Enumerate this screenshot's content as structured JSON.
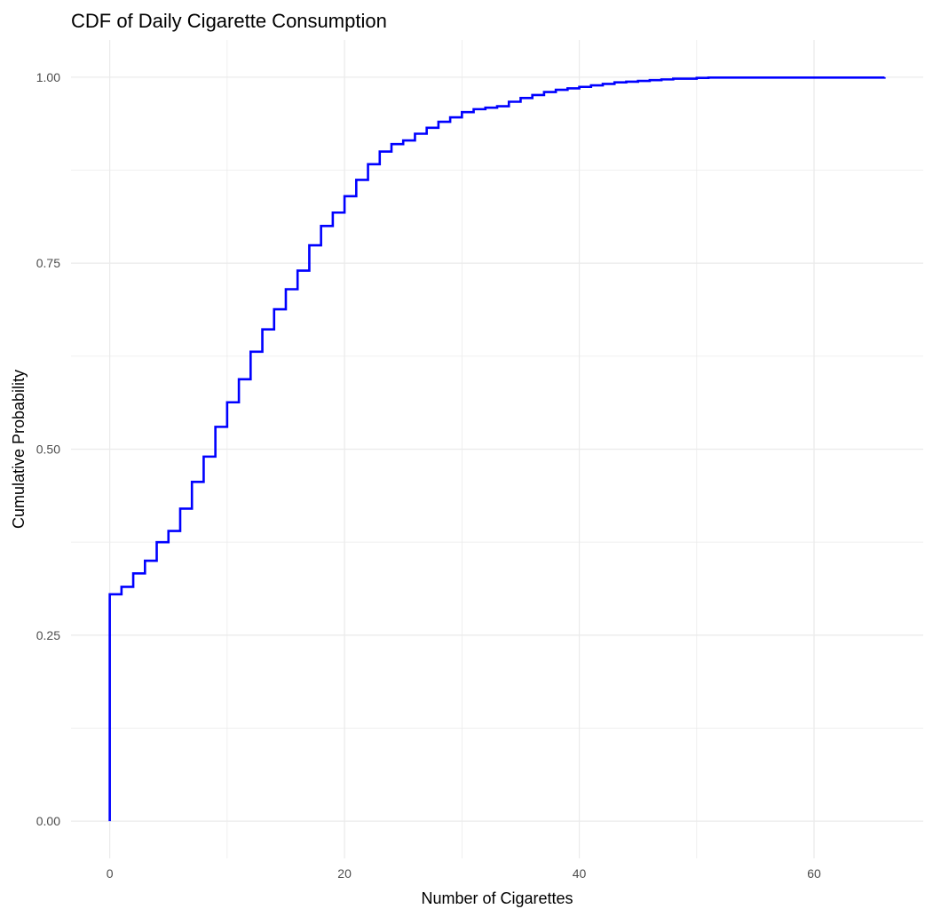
{
  "chart_data": {
    "type": "line",
    "subtype": "step-ecdf",
    "title": "CDF of Daily Cigarette Consumption",
    "xlabel": "Number of Cigarettes",
    "ylabel": "Cumulative Probability",
    "xlim": [
      -3.3,
      69.3
    ],
    "ylim": [
      -0.05,
      1.05
    ],
    "x_ticks": [
      0,
      20,
      40,
      60
    ],
    "x_tick_labels": [
      "0",
      "20",
      "40",
      "60"
    ],
    "y_ticks": [
      0,
      0.25,
      0.5,
      0.75,
      1
    ],
    "y_tick_labels": [
      "0.00",
      "0.25",
      "0.50",
      "0.75",
      "1.00"
    ],
    "x_minor_ticks": [
      10,
      30,
      50
    ],
    "y_minor_ticks": [
      0.125,
      0.375,
      0.625,
      0.875
    ],
    "grid": true,
    "legend": "none",
    "line_color": "#0000ff",
    "grid_color": "#ebebeb",
    "series": [
      {
        "x": [
          0,
          1,
          2,
          3,
          4,
          5,
          6,
          7,
          8,
          9,
          10,
          11,
          12,
          13,
          14,
          15,
          16,
          17,
          18,
          19,
          20,
          21,
          22,
          23,
          24,
          25,
          26,
          27,
          28,
          29,
          30,
          31,
          32,
          33,
          34,
          35,
          36,
          37,
          38,
          39,
          40,
          41,
          42,
          43,
          44,
          45,
          46,
          47,
          48,
          49,
          50,
          51,
          66
        ],
        "y": [
          0.305,
          0.315,
          0.333,
          0.35,
          0.375,
          0.39,
          0.42,
          0.456,
          0.49,
          0.53,
          0.563,
          0.594,
          0.631,
          0.661,
          0.688,
          0.715,
          0.74,
          0.774,
          0.8,
          0.818,
          0.84,
          0.862,
          0.883,
          0.9,
          0.91,
          0.915,
          0.924,
          0.932,
          0.94,
          0.946,
          0.953,
          0.957,
          0.959,
          0.961,
          0.967,
          0.972,
          0.976,
          0.98,
          0.983,
          0.985,
          0.987,
          0.989,
          0.991,
          0.993,
          0.994,
          0.995,
          0.996,
          0.997,
          0.998,
          0.998,
          0.999,
          0.9995,
          1.0
        ]
      }
    ]
  }
}
